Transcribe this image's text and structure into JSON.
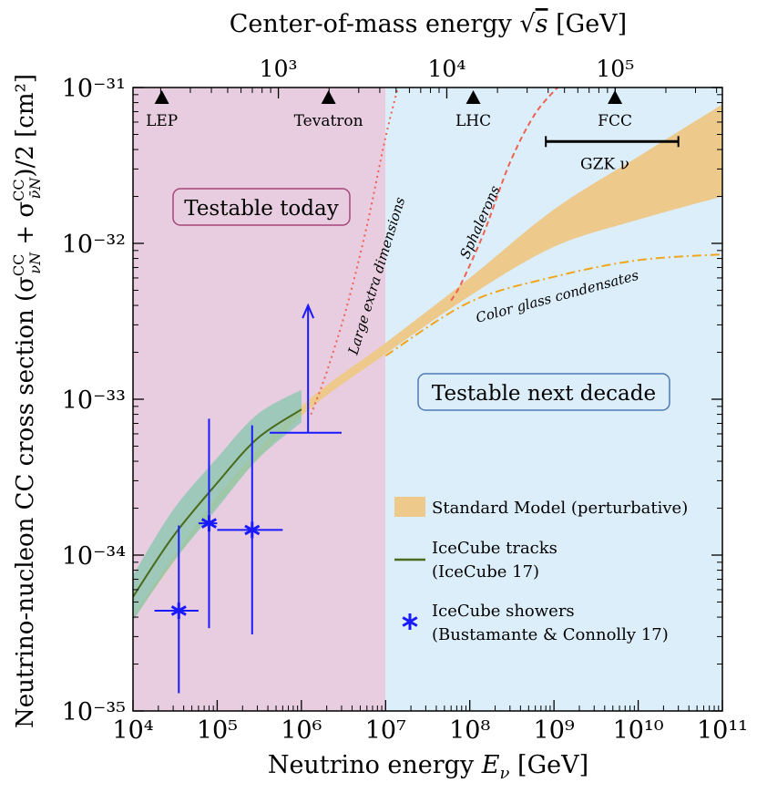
{
  "chart_data": {
    "type": "line",
    "xscale": "log",
    "yscale": "log",
    "xlim": [
      10000,
      100000000000
    ],
    "ylim": [
      1e-35,
      1e-31
    ],
    "xlabel": "Neutrino energy E_ν [GeV]",
    "xlabel_main": "Neutrino energy ",
    "xlabel_var": "E",
    "xlabel_sub": "ν",
    "xlabel_unit": " [GeV]",
    "ylabel": "Neutrino-nucleon CC cross section (σ^CC_νN + σ^CC_ν̄N)/2 [cm²]",
    "ylabel_main": "Neutrino-nucleon CC cross section",
    "ylabel_unit": "[cm²]",
    "top_axis_label": "Center-of-mass energy √s [GeV]",
    "top_axis_main": "Center-of-mass energy",
    "top_axis_var": "s",
    "top_axis_unit": "[GeV]",
    "x_ticks": [
      "10⁴",
      "10⁵",
      "10⁶",
      "10⁷",
      "10⁸",
      "10⁹",
      "10¹⁰",
      "10¹¹"
    ],
    "y_ticks": [
      "10⁻³⁵",
      "10⁻³⁴",
      "10⁻³³",
      "10⁻³²",
      "10⁻³¹"
    ],
    "top_ticks": [
      {
        "label": "10³",
        "sqrt_s": 1000
      },
      {
        "label": "10⁴",
        "sqrt_s": 10000
      },
      {
        "label": "10⁵",
        "sqrt_s": 100000
      }
    ],
    "regions": [
      {
        "name": "Testable today",
        "x_range": [
          10000,
          10000000
        ],
        "color": "#e8cde0",
        "label_color": "#a8457a"
      },
      {
        "name": "Testable next decade",
        "x_range": [
          10000000,
          100000000000
        ],
        "color": "#dceefa",
        "label_color": "#4f7ab3"
      }
    ],
    "colliders": [
      {
        "name": "LEP",
        "E": 22000
      },
      {
        "name": "Tevatron",
        "E": 2100000
      },
      {
        "name": "LHC",
        "E": 110000000
      },
      {
        "name": "FCC",
        "E": 5300000000
      }
    ],
    "gzk": {
      "label": "GZK ν",
      "x_range": [
        800000000,
        30000000000
      ],
      "y": 4.5e-32
    },
    "standard_model_band": {
      "name": "Standard Model (perturbative)",
      "color": "#edc98c",
      "x": [
        10000,
        100000,
        1000000,
        10000000,
        100000000,
        1000000000,
        10000000000,
        100000000000
      ],
      "lower": [
        3.9e-35,
        2.1e-34,
        7.8e-34,
        1.95e-33,
        4.6e-33,
        9.5e-33,
        1.42e-32,
        2e-32
      ],
      "upper": [
        4.1e-35,
        2.35e-34,
        9e-34,
        2.3e-33,
        6e-33,
        1.65e-32,
        3.6e-32,
        7.8e-32
      ]
    },
    "icecube_tracks": {
      "name": "IceCube tracks",
      "reference": "(IceCube 17)",
      "color": "#4c6a1c",
      "band_color": "#84c6ae",
      "x": [
        10000,
        30000,
        100000,
        300000,
        1000000
      ],
      "central": [
        5.4e-35,
        1.32e-34,
        2.9e-34,
        5.6e-34,
        8.6e-34
      ],
      "lower": [
        3.8e-35,
        9e-35,
        2e-34,
        4.1e-34,
        7.1e-34
      ],
      "upper": [
        7.4e-35,
        1.95e-34,
        4.2e-34,
        8e-34,
        1.15e-33
      ]
    },
    "icecube_showers": {
      "name": "IceCube showers",
      "reference": "(Bustamante & Connolly 17)",
      "color": "#1a1aff",
      "points": [
        {
          "x": 35000,
          "y": 4.4e-35,
          "xerr": [
            18000,
            60000
          ],
          "yerr": [
            1.3e-35,
            1.55e-34
          ]
        },
        {
          "x": 80000,
          "y": 1.6e-34,
          "xerr": [
            60000,
            100000
          ],
          "yerr": [
            3.4e-35,
            7.5e-34
          ]
        },
        {
          "x": 260000,
          "y": 1.45e-34,
          "xerr": [
            100000,
            600000
          ],
          "yerr": [
            3.1e-35,
            6.8e-34
          ]
        }
      ],
      "lower_limit": {
        "x": 1200000,
        "y": 6.1e-34,
        "xerr": [
          420000,
          3000000
        ],
        "arrow_to": 4e-33
      }
    },
    "bsm_curves": [
      {
        "name": "Large extra dimensions",
        "color": "#f06050",
        "style": "dotted",
        "x": [
          1300000,
          2000000,
          3500000,
          6000000,
          10000000,
          15000000
        ],
        "y": [
          8e-34,
          1.5e-33,
          4e-33,
          1.3e-32,
          4.8e-32,
          1.15e-31
        ]
      },
      {
        "name": "Sphalerons",
        "color": "#f06050",
        "style": "dashed",
        "x": [
          60000000,
          80000000,
          150000000,
          300000000,
          600000000,
          1200000000
        ],
        "y": [
          4.3e-33,
          5.6e-33,
          1.2e-32,
          3.3e-32,
          6.8e-32,
          1.05e-31
        ]
      },
      {
        "name": "Color glass condensates",
        "color": "#f2a51c",
        "style": "dashdot",
        "x": [
          10000000,
          100000000,
          1000000000,
          10000000000,
          100000000000
        ],
        "y": [
          1.9e-33,
          4.2e-33,
          6.1e-33,
          7.8e-33,
          8.5e-33
        ]
      }
    ],
    "legend": [
      {
        "label": "Standard Model (perturbative)"
      },
      {
        "label": "IceCube tracks",
        "label2": "(IceCube 17)"
      },
      {
        "label": "IceCube showers",
        "label2": "(Bustamante & Connolly 17)"
      }
    ],
    "legend_position": "lower-right"
  }
}
